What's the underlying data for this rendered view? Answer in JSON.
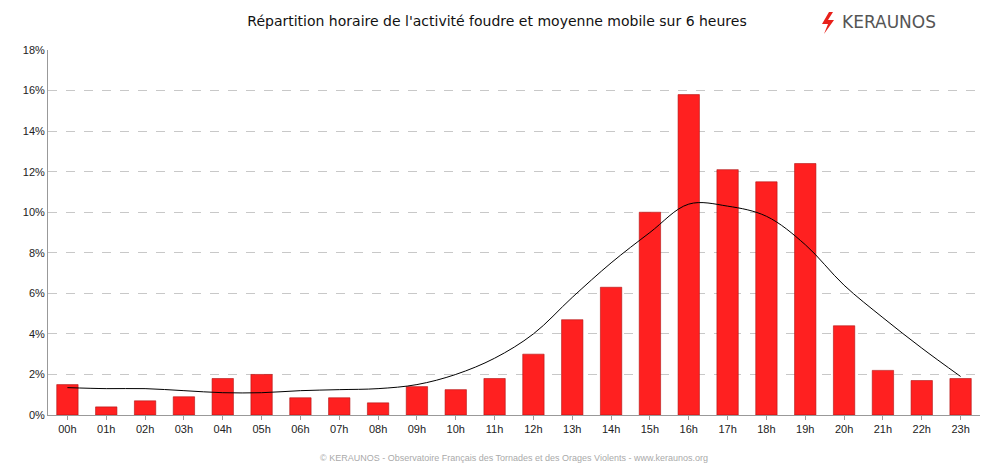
{
  "chart_data": {
    "type": "bar",
    "title": "Répartition horaire de l'activité foudre et moyenne mobile sur 6 heures",
    "annotations": [
      "KERAUNOS",
      "© KERAUNOS - Observatoire Français des Tornades et des Orages Violents - www.keraunos.org"
    ],
    "categories": [
      "00h",
      "01h",
      "02h",
      "03h",
      "04h",
      "05h",
      "06h",
      "07h",
      "08h",
      "09h",
      "10h",
      "11h",
      "12h",
      "13h",
      "14h",
      "15h",
      "16h",
      "17h",
      "18h",
      "19h",
      "20h",
      "21h",
      "22h",
      "23h"
    ],
    "series": [
      {
        "type": "bar",
        "color": "#ff2020",
        "values": [
          1.5,
          0.4,
          0.7,
          0.9,
          1.8,
          2.0,
          0.85,
          0.85,
          0.6,
          1.4,
          1.25,
          1.8,
          3.0,
          4.7,
          6.3,
          10.0,
          15.8,
          12.1,
          11.5,
          12.4,
          4.4,
          2.2,
          1.7,
          1.8
        ]
      },
      {
        "type": "line",
        "color": "#000000",
        "line_style": "spline",
        "values": [
          1.35,
          1.3,
          1.3,
          1.2,
          1.1,
          1.1,
          1.2,
          1.25,
          1.3,
          1.5,
          2.0,
          2.8,
          4.0,
          5.8,
          7.5,
          9.0,
          10.4,
          10.3,
          9.8,
          8.4,
          6.4,
          4.8,
          3.3,
          1.9
        ]
      }
    ],
    "ylim": [
      0,
      18
    ],
    "yticks": [
      {
        "value": 0,
        "label": "0%"
      },
      {
        "value": 2,
        "label": "2%"
      },
      {
        "value": 4,
        "label": "4%"
      },
      {
        "value": 6,
        "label": "6%"
      },
      {
        "value": 8,
        "label": "8%"
      },
      {
        "value": 10,
        "label": "10%"
      },
      {
        "value": 12,
        "label": "12%"
      },
      {
        "value": 14,
        "label": "14%"
      },
      {
        "value": 16,
        "label": "16%"
      },
      {
        "value": 18,
        "label": "18%"
      }
    ],
    "grid": true
  }
}
